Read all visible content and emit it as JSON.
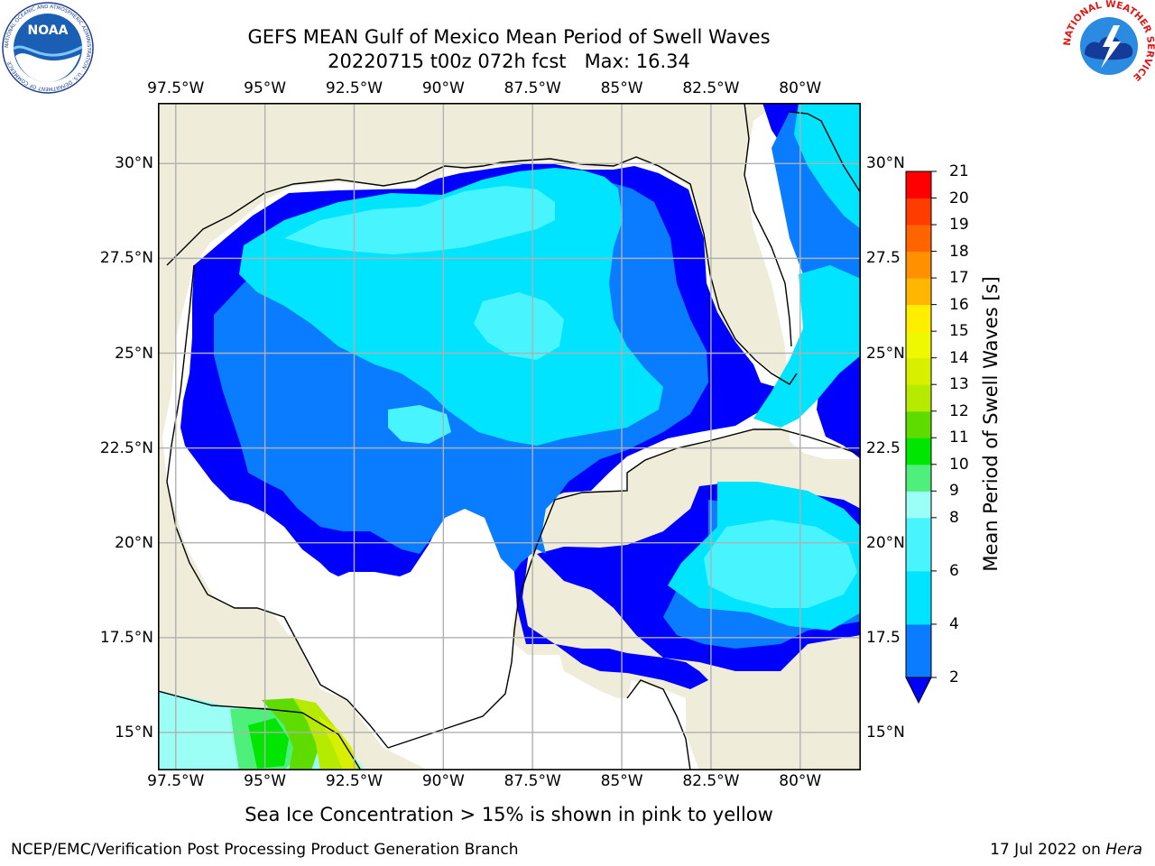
{
  "title": {
    "line1": "GEFS MEAN Gulf of Mexico Mean Period of Swell Waves",
    "line2": "20220715 t00z 072h fcst   Max: 16.34"
  },
  "logos": {
    "left": {
      "name": "noaa-logo",
      "text": "NOAA",
      "ring_text": "NATIONAL OCEANIC AND ATMOSPHERIC ADMINISTRATION · U.S. DEPARTMENT OF COMMERCE"
    },
    "right": {
      "name": "nws-logo",
      "ring_text": "NATIONAL WEATHER SERVICE"
    }
  },
  "map": {
    "lon_labels": [
      "97.5°W",
      "95°W",
      "92.5°W",
      "90°W",
      "87.5°W",
      "85°W",
      "82.5°W",
      "80°W"
    ],
    "lat_labels_left": [
      "30°N",
      "27.5°N",
      "25°N",
      "22.5°N",
      "20°N",
      "17.5°N",
      "15°N"
    ],
    "lat_labels_right": [
      "30°N",
      "27.5",
      "25°N",
      "22.5",
      "20°N",
      "17.5",
      "15°N"
    ],
    "lon_range": [
      -98,
      -78.3
    ],
    "lat_range": [
      14,
      31.6
    ],
    "grid": true,
    "colors": {
      "land": "#efedda",
      "coast": "#000000",
      "grid": "#b0b0b0",
      "no_data": "#ffffff"
    }
  },
  "colorbar": {
    "label": "Mean Period of Swell Waves [s]",
    "ticks": [
      "21",
      "20",
      "19",
      "18",
      "17",
      "16",
      "15",
      "14",
      "13",
      "12",
      "11",
      "10",
      "9",
      "8",
      "6",
      "4",
      "2"
    ],
    "bins": [
      {
        "from": 2,
        "to": 4,
        "color": "#0a7cff"
      },
      {
        "from": 4,
        "to": 6,
        "color": "#00e4ff"
      },
      {
        "from": 6,
        "to": 8,
        "color": "#48f5ff"
      },
      {
        "from": 8,
        "to": 9,
        "color": "#9bfff6"
      },
      {
        "from": 9,
        "to": 10,
        "color": "#4ef07b"
      },
      {
        "from": 10,
        "to": 11,
        "color": "#00e600"
      },
      {
        "from": 11,
        "to": 12,
        "color": "#5edc00"
      },
      {
        "from": 12,
        "to": 13,
        "color": "#b6ea00"
      },
      {
        "from": 13,
        "to": 14,
        "color": "#d8f000"
      },
      {
        "from": 14,
        "to": 15,
        "color": "#f0f800"
      },
      {
        "from": 15,
        "to": 16,
        "color": "#ffee00"
      },
      {
        "from": 16,
        "to": 17,
        "color": "#ffb600"
      },
      {
        "from": 17,
        "to": 18,
        "color": "#ff9000"
      },
      {
        "from": 18,
        "to": 19,
        "color": "#ff6400"
      },
      {
        "from": 19,
        "to": 20,
        "color": "#ff3c00"
      },
      {
        "from": 20,
        "to": 21,
        "color": "#ff0000"
      }
    ],
    "under_color": "#0000ff"
  },
  "note": "Sea Ice Concentration > 15% is shown in pink to yellow",
  "footer": {
    "left": "NCEP/EMC/Verification Post Processing Product Generation Branch",
    "right_prefix": "17 Jul 2022 on ",
    "right_host": "Hera"
  }
}
